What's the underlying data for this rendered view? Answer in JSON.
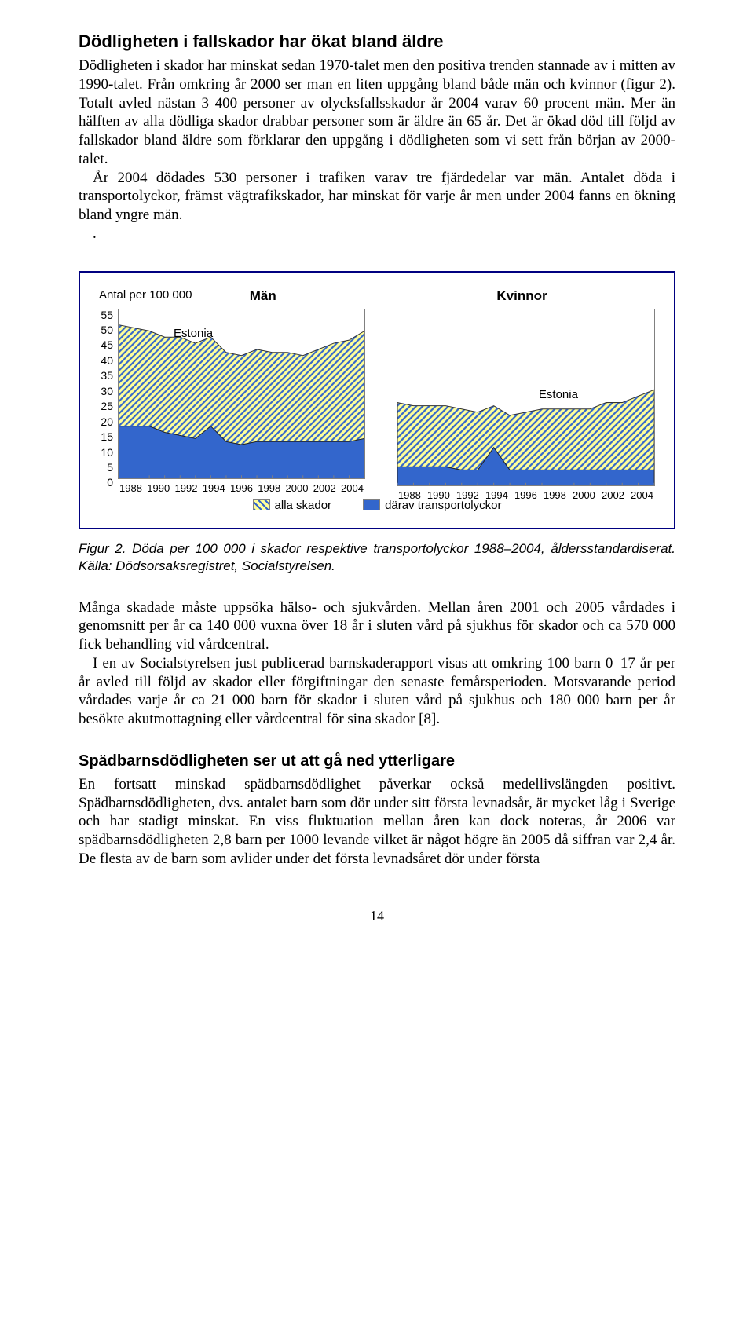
{
  "headings": {
    "h2": "Dödligheten i fallskador har ökat bland äldre",
    "h3": "Spädbarnsdödligheten ser ut att gå ned ytterligare"
  },
  "paragraphs": {
    "p1": "Dödligheten i skador har minskat sedan 1970-talet men den positiva trenden stannade av i mitten av 1990-talet. Från omkring år 2000 ser man en liten uppgång bland både män och kvinnor (figur 2). Totalt avled nästan 3 400 personer av olycksfallsskador år 2004 varav 60 procent män. Mer än hälften av alla dödliga skador drabbar personer som är äldre än 65 år. Det är ökad död till följd av fallskador bland äldre som förklarar den uppgång i dödligheten som vi sett från början av 2000-talet.",
    "p2": "År 2004 dödades 530 personer i trafiken varav tre fjärdedelar var män. Antalet döda i transportolyckor, främst vägtrafikskador, har minskat för varje år men under 2004 fanns en ökning bland yngre män.",
    "p3": "Många skadade måste uppsöka hälso- och sjukvården. Mellan åren 2001 och 2005 vårdades i genomsnitt per år ca 140 000 vuxna över 18 år i sluten vård på sjukhus för skador och ca 570 000 fick behandling vid vårdcentral.",
    "p4": "I en av Socialstyrelsen just publicerad barnskaderapport visas att omkring 100 barn 0–17 år per år avled till följd av skador eller förgiftningar den senaste femårsperioden. Motsvarande period vårdades varje år ca 21 000 barn för skador i sluten vård på sjukhus och 180 000 barn per år besökte akutmottagning eller vårdcentral för sina skador [8].",
    "p5": "En fortsatt minskad spädbarnsdödlighet påverkar också medellivslängden positivt. Spädbarnsdödligheten, dvs. antalet barn som dör under sitt första levnadsår, är mycket låg i Sverige och har stadigt minskat. En viss fluktuation mellan åren kan dock noteras, år 2006 var spädbarnsdödligheten 2,8 barn per 1000 levande vilket är något högre än 2005 då siffran var 2,4 år. De flesta av de barn som avlider under det första levnadsåret dör under första"
  },
  "figure": {
    "axis_label": "Antal per 100 000",
    "men_title": "Män",
    "women_title": "Kvinnor",
    "estonia_label": "Estonia",
    "ylim": [
      0,
      55
    ],
    "ytick_step": 5,
    "y_ticks": [
      "55",
      "50",
      "45",
      "40",
      "35",
      "30",
      "25",
      "20",
      "15",
      "10",
      "5",
      "0"
    ],
    "x_years": [
      1988,
      1989,
      1990,
      1991,
      1992,
      1993,
      1994,
      1995,
      1996,
      1997,
      1998,
      1999,
      2000,
      2001,
      2002,
      2003,
      2004
    ],
    "x_labels": [
      "1988",
      "1990",
      "1992",
      "1994",
      "1996",
      "1998",
      "2000",
      "2002",
      "2004"
    ],
    "colors": {
      "transport_fill": "#3366cc",
      "all_fill_bg": "#ffff99",
      "all_hatch": "#3366cc",
      "border": "#808080",
      "frame": "#000080"
    },
    "men": {
      "all_skador": [
        50,
        49,
        48,
        46,
        46,
        44,
        46,
        41,
        40,
        42,
        41,
        41,
        40,
        42,
        44,
        45,
        48
      ],
      "transport": [
        17,
        17,
        17,
        15,
        14,
        13,
        17,
        12,
        11,
        12,
        12,
        12,
        12,
        12,
        12,
        12,
        13
      ]
    },
    "women": {
      "all_skador": [
        26,
        25,
        25,
        25,
        24,
        23,
        25,
        22,
        23,
        24,
        24,
        24,
        24,
        26,
        26,
        28,
        30
      ],
      "transport": [
        6,
        6,
        6,
        6,
        5,
        5,
        12,
        5,
        5,
        5,
        5,
        5,
        5,
        5,
        5,
        5,
        5
      ]
    },
    "legend": {
      "all": "alla skador",
      "transport": "därav transportolyckor"
    },
    "caption": "Figur 2. Döda per 100 000 i skador respektive transportolyckor 1988–2004, åldersstandardiserat. Källa: Dödsorsaksregistret, Socialstyrelsen."
  },
  "page_number": "14"
}
